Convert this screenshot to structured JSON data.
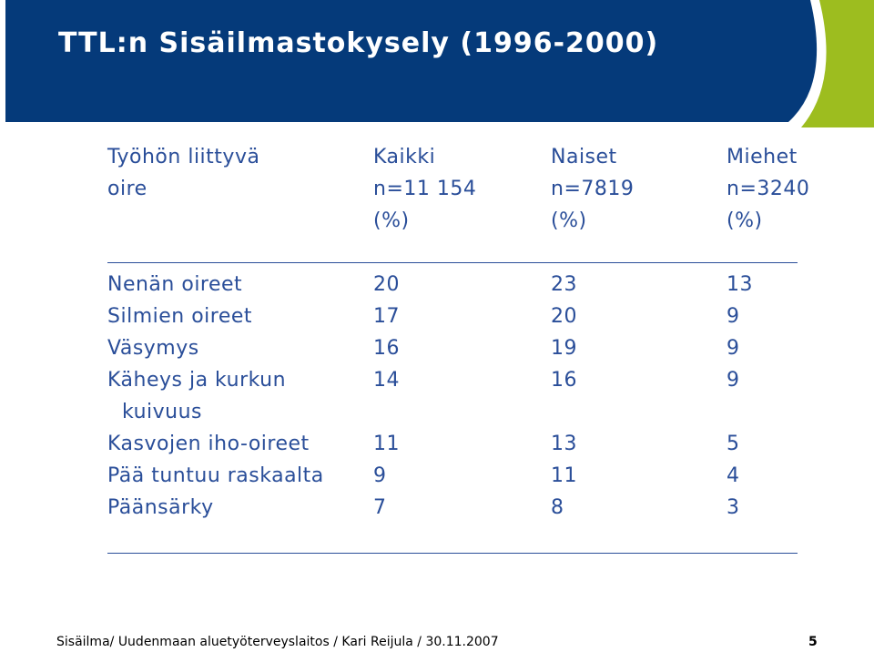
{
  "title": "TTL:n Sisäilmastokysely (1996-2000)",
  "colors": {
    "header_blue": "#053a7a",
    "header_green": "#9dbd1f",
    "text_blue": "#2a4e99"
  },
  "table": {
    "header": {
      "col0": [
        "Työhön liittyvä",
        "oire",
        ""
      ],
      "col1": [
        "Kaikki",
        "n=11 154",
        "(%)"
      ],
      "col2": [
        "Naiset",
        "n=7819",
        "(%)"
      ],
      "col3": [
        "Miehet",
        "n=3240",
        "(%)"
      ]
    },
    "rows": [
      {
        "label": "Nenän oireet",
        "label2": "",
        "kaikki": "20",
        "naiset": "23",
        "miehet": "13"
      },
      {
        "label": "Silmien oireet",
        "label2": "",
        "kaikki": "17",
        "naiset": "20",
        "miehet": "9"
      },
      {
        "label": "Väsymys",
        "label2": "",
        "kaikki": "16",
        "naiset": "19",
        "miehet": "9"
      },
      {
        "label": "Käheys ja kurkun",
        "label2": "kuivuus",
        "kaikki": "14",
        "naiset": "16",
        "miehet": "9"
      },
      {
        "label": "Kasvojen iho-oireet",
        "label2": "",
        "kaikki": "11",
        "naiset": "13",
        "miehet": "5"
      },
      {
        "label": "Pää tuntuu raskaalta",
        "label2": "",
        "kaikki": "9",
        "naiset": "11",
        "miehet": "4"
      },
      {
        "label": "Päänsärky",
        "label2": "",
        "kaikki": "7",
        "naiset": "8",
        "miehet": "3"
      }
    ]
  },
  "footer": {
    "text": "Sisäilma/ Uudenmaan aluetyöterveyslaitos / Kari Reijula / 30.11.2007",
    "page": "5"
  }
}
